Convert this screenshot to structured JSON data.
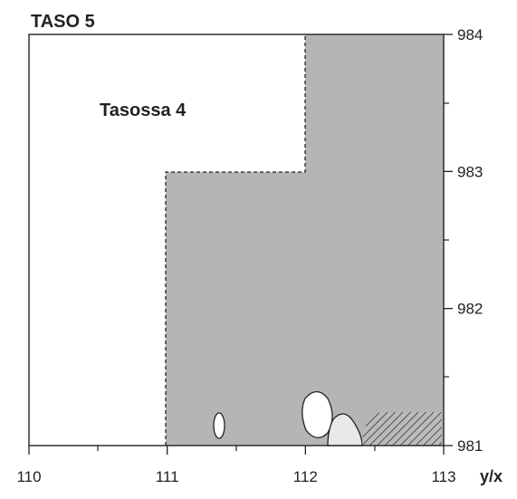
{
  "title": "TASO 5",
  "label": "Tasossa 4",
  "axes": {
    "x_label": "y/x",
    "x_ticks": [
      110,
      111,
      112,
      113
    ],
    "y_ticks": [
      981,
      982,
      983,
      984
    ]
  }
}
